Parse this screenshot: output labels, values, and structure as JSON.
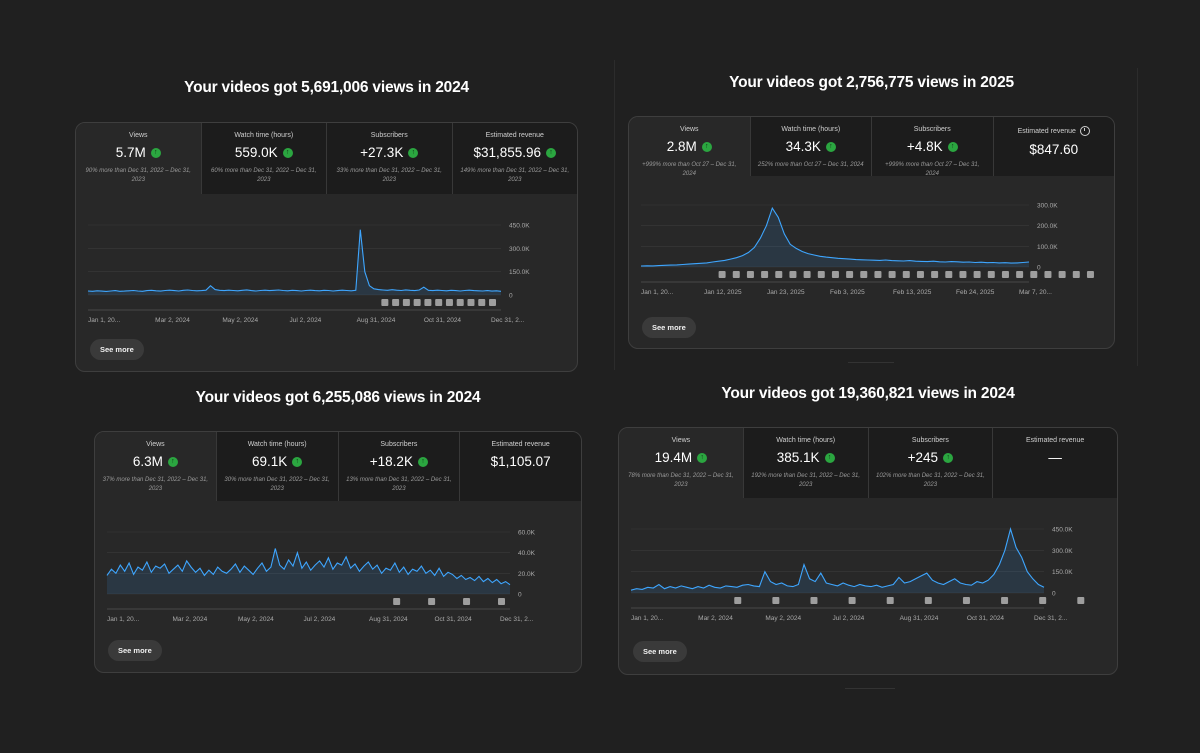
{
  "see_more_label": "See more",
  "colors": {
    "line": "#3ea6ff",
    "up_badge": "#2ba640",
    "background": "#202020",
    "card": "#282828"
  },
  "icons": {
    "up": "up-arrow-icon",
    "info": "clock-icon",
    "annotation": "video-thumbnail-icon"
  },
  "cards": [
    {
      "headline": "Your videos got 5,691,006 views in 2024",
      "tiles": [
        {
          "label": "Views",
          "value": "5.7M",
          "up": true,
          "sub": "90% more than Dec 31, 2022 – Dec 31, 2023"
        },
        {
          "label": "Watch time (hours)",
          "value": "559.0K",
          "up": true,
          "sub": "60% more than Dec 31, 2022 – Dec 31, 2023"
        },
        {
          "label": "Subscribers",
          "value": "+27.3K",
          "up": true,
          "sub": "33% more than Dec 31, 2022 – Dec 31, 2023"
        },
        {
          "label": "Estimated revenue",
          "value": "$31,855.96",
          "up": true,
          "sub": "149% more than Dec 31, 2022 – Dec 31, 2023"
        }
      ],
      "chart_data": {
        "type": "area",
        "y_ticks": [
          "450.0K",
          "300.0K",
          "150.0K",
          "0"
        ],
        "ylim": [
          0,
          450000
        ],
        "x_ticks": [
          "Jan 1, 20...",
          "Mar 2, 2024",
          "May 2, 2024",
          "Jul 2, 2024",
          "Aug 31, 2024",
          "Oct 31, 2024",
          "Dec 31, 2..."
        ],
        "annotation_count": 11,
        "values": [
          26000,
          24000,
          27000,
          25000,
          23000,
          26000,
          28000,
          24000,
          25000,
          27000,
          29000,
          26000,
          24000,
          28000,
          30000,
          27000,
          25000,
          29000,
          31000,
          28000,
          26000,
          30000,
          32000,
          29000,
          27000,
          28000,
          31000,
          60000,
          35000,
          30000,
          28000,
          31000,
          29000,
          27000,
          30000,
          33000,
          28000,
          26000,
          29000,
          31000,
          28000,
          30000,
          32000,
          29000,
          27000,
          30000,
          28000,
          26000,
          29000,
          31000,
          28000,
          27000,
          30000,
          29000,
          26000,
          28000,
          31000,
          29000,
          27000,
          30000,
          420000,
          150000,
          60000,
          40000,
          35000,
          32000,
          30000,
          34000,
          31000,
          29000,
          33000,
          30000,
          28000,
          32000,
          50000,
          30000,
          28000,
          31000,
          29000,
          27000,
          30000,
          28000,
          26000,
          29000,
          31000,
          28000,
          27000,
          26000,
          28000,
          25000,
          27000,
          24000
        ]
      }
    },
    {
      "headline": "Your videos got 2,756,775 views in 2025",
      "tiles": [
        {
          "label": "Views",
          "value": "2.8M",
          "up": true,
          "sub": "+999% more than Oct 27 – Dec 31, 2024"
        },
        {
          "label": "Watch time (hours)",
          "value": "34.3K",
          "up": true,
          "sub": "252% more than Oct 27 – Dec 31, 2024"
        },
        {
          "label": "Subscribers",
          "value": "+4.8K",
          "up": true,
          "sub": "+999% more than Oct 27 – Dec 31, 2024"
        },
        {
          "label": "Estimated revenue",
          "value": "$847.60",
          "up": false,
          "sub": "",
          "info_icon": true
        }
      ],
      "chart_data": {
        "type": "area",
        "y_ticks": [
          "300.0K",
          "200.0K",
          "100.0K",
          "0"
        ],
        "ylim": [
          0,
          300000
        ],
        "x_ticks": [
          "Jan 1, 20...",
          "Jan 12, 2025",
          "Jan 23, 2025",
          "Feb 3, 2025",
          "Feb 13, 2025",
          "Feb 24, 2025",
          "Mar 7, 20..."
        ],
        "annotation_count": 27,
        "values": [
          5000,
          6000,
          5500,
          7000,
          8000,
          9000,
          10000,
          12000,
          14000,
          16000,
          18000,
          20000,
          24000,
          28000,
          32000,
          38000,
          45000,
          55000,
          70000,
          95000,
          140000,
          200000,
          285000,
          240000,
          160000,
          110000,
          90000,
          75000,
          65000,
          58000,
          52000,
          48000,
          45000,
          42000,
          40000,
          38000,
          36000,
          35000,
          34000,
          33000,
          32000,
          34000,
          31000,
          30000,
          29000,
          31000,
          28000,
          27000,
          26000,
          28000,
          25000,
          24000,
          26000,
          25000,
          23000,
          24000,
          22000,
          23000,
          21000,
          22000,
          20000,
          21000,
          19000,
          20000,
          22000,
          24000
        ]
      }
    },
    {
      "headline": "Your videos got 6,255,086 views in 2024",
      "tiles": [
        {
          "label": "Views",
          "value": "6.3M",
          "up": true,
          "sub": "37% more than Dec 31, 2022 – Dec 31, 2023"
        },
        {
          "label": "Watch time (hours)",
          "value": "69.1K",
          "up": true,
          "sub": "30% more than Dec 31, 2022 – Dec 31, 2023"
        },
        {
          "label": "Subscribers",
          "value": "+18.2K",
          "up": true,
          "sub": "13% more than Dec 31, 2022 – Dec 31, 2023"
        },
        {
          "label": "Estimated revenue",
          "value": "$1,105.07",
          "up": false,
          "sub": ""
        }
      ],
      "chart_data": {
        "type": "area",
        "y_ticks": [
          "60.0K",
          "40.0K",
          "20.0K",
          "0"
        ],
        "ylim": [
          0,
          60000
        ],
        "x_ticks": [
          "Jan 1, 20...",
          "Mar 2, 2024",
          "May 2, 2024",
          "Jul 2, 2024",
          "Aug 31, 2024",
          "Oct 31, 2024",
          "Dec 31, 2..."
        ],
        "annotation_count": 4,
        "values": [
          18000,
          24000,
          20000,
          28000,
          22000,
          30000,
          19000,
          26000,
          23000,
          31000,
          21000,
          27000,
          25000,
          29000,
          20000,
          24000,
          28000,
          22000,
          32000,
          26000,
          21000,
          25000,
          18000,
          23000,
          19000,
          26000,
          22000,
          20000,
          24000,
          29000,
          21000,
          27000,
          23000,
          19000,
          25000,
          30000,
          22000,
          26000,
          44000,
          28000,
          24000,
          33000,
          27000,
          40000,
          25000,
          31000,
          23000,
          28000,
          32000,
          26000,
          35000,
          24000,
          30000,
          28000,
          36000,
          25000,
          29000,
          22000,
          27000,
          31000,
          24000,
          28000,
          20000,
          25000,
          23000,
          30000,
          21000,
          26000,
          19000,
          24000,
          22000,
          27000,
          20000,
          23000,
          18000,
          25000,
          17000,
          21000,
          19000,
          15000,
          18000,
          14000,
          16000,
          13000,
          17000,
          12000,
          15000,
          11000,
          14000,
          10000,
          12000,
          9000
        ]
      }
    },
    {
      "headline": "Your videos got 19,360,821 views in 2024",
      "tiles": [
        {
          "label": "Views",
          "value": "19.4M",
          "up": true,
          "sub": "78% more than Dec 31, 2022 – Dec 31, 2023"
        },
        {
          "label": "Watch time (hours)",
          "value": "385.1K",
          "up": true,
          "sub": "192% more than Dec 31, 2022 – Dec 31, 2023"
        },
        {
          "label": "Subscribers",
          "value": "+245",
          "up": true,
          "sub": "102% more than Dec 31, 2022 – Dec 31, 2023"
        },
        {
          "label": "Estimated revenue",
          "value": "—",
          "up": false,
          "sub": ""
        }
      ],
      "chart_data": {
        "type": "area",
        "y_ticks": [
          "450.0K",
          "300.0K",
          "150.0K",
          "0"
        ],
        "ylim": [
          0,
          450000
        ],
        "x_ticks": [
          "Jan 1, 20...",
          "Mar 2, 2024",
          "May 2, 2024",
          "Jul 2, 2024",
          "Aug 31, 2024",
          "Oct 31, 2024",
          "Dec 31, 2..."
        ],
        "annotation_count": 10,
        "values": [
          20000,
          30000,
          25000,
          40000,
          35000,
          60000,
          30000,
          45000,
          35000,
          50000,
          40000,
          30000,
          45000,
          35000,
          55000,
          40000,
          35000,
          50000,
          45000,
          40000,
          55000,
          60000,
          50000,
          45000,
          150000,
          80000,
          60000,
          70000,
          50000,
          45000,
          60000,
          200000,
          100000,
          80000,
          140000,
          70000,
          60000,
          50000,
          70000,
          55000,
          45000,
          60000,
          50000,
          45000,
          55000,
          40000,
          50000,
          60000,
          110000,
          70000,
          80000,
          100000,
          120000,
          140000,
          90000,
          70000,
          60000,
          80000,
          100000,
          70000,
          60000,
          55000,
          80000,
          70000,
          90000,
          130000,
          200000,
          300000,
          450000,
          320000,
          250000,
          150000,
          100000,
          60000,
          40000
        ]
      }
    }
  ]
}
